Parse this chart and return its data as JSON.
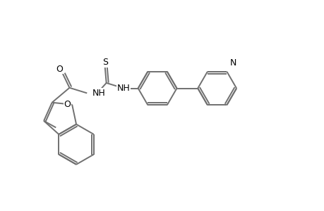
{
  "background": "#ffffff",
  "line_color": "#707070",
  "text_color": "#000000",
  "lw": 1.4,
  "fs": 9.0,
  "figsize": [
    4.6,
    3.0
  ],
  "dpi": 100,
  "xlim": [
    -1,
    11
  ],
  "ylim": [
    -0.5,
    7
  ]
}
